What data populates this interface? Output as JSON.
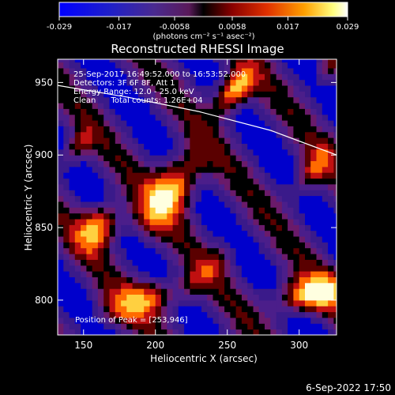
{
  "window": {
    "footer_date": "6-Sep-2022 17:50"
  },
  "colorbar": {
    "ticks": [
      "-0.029",
      "-0.017",
      "-0.0058",
      "0.0058",
      "0.017",
      "0.029"
    ],
    "tick_values": [
      -0.029,
      -0.017,
      -0.0058,
      0.0058,
      0.017,
      0.029
    ],
    "range": [
      -0.029,
      0.029
    ],
    "unit_label": "(photons cm⁻² s⁻¹ asec⁻²)"
  },
  "chart_data": {
    "type": "heatmap",
    "title": "Reconstructed RHESSI Image",
    "xlabel": "Heliocentric X (arcsec)",
    "ylabel": "Heliocentric Y (arcsec)",
    "xlim": [
      132,
      326
    ],
    "ylim": [
      776,
      966
    ],
    "xticks": [
      "150",
      "200",
      "250",
      "300"
    ],
    "xtick_values": [
      150,
      200,
      250,
      300
    ],
    "yticks": [
      "800",
      "850",
      "900",
      "950"
    ],
    "ytick_values": [
      800,
      850,
      900,
      950
    ],
    "annotations": [
      "25-Sep-2017 16:49:52.000 to 16:53:52.000",
      "Detectors: 3F 6F 8F, Att 1",
      "Energy Range: 12.0 - 25.0 keV",
      "Clean      Total counts: 1.26E+04"
    ],
    "peak_label": "Position of Peak = [253,946]",
    "peak_position": [
      253,
      946
    ],
    "limb_arc": [
      [
        132,
        948
      ],
      [
        180,
        940
      ],
      [
        230,
        930
      ],
      [
        280,
        917
      ],
      [
        326,
        900
      ]
    ],
    "grid": false,
    "colormap": [
      "#0000cc",
      "#3a1a8a",
      "#4b1e8a",
      "#6a1a6a",
      "#000000",
      "#5a0000",
      "#c01010",
      "#ff6a00",
      "#ffd040",
      "#ffffe0"
    ]
  }
}
